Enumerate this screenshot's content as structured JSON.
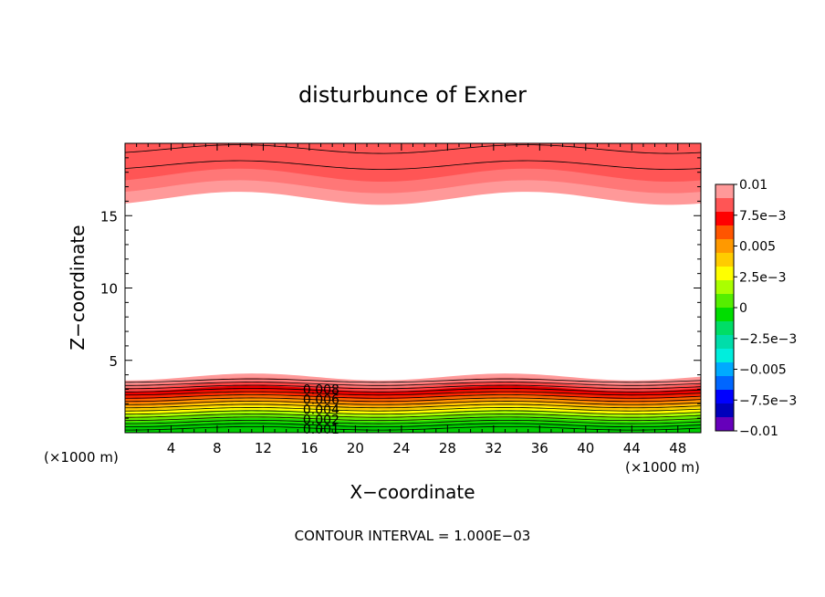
{
  "chart_data": {
    "type": "heatmap",
    "title": "disturbunce of Exner",
    "xlabel": "X−coordinate",
    "ylabel": "Z−coordinate",
    "x_unit": "(×1000 m)",
    "y_unit": "(×1000 m)",
    "xlim": [
      0,
      50
    ],
    "ylim": [
      0,
      20
    ],
    "x_ticks": [
      4,
      8,
      12,
      16,
      20,
      24,
      28,
      32,
      36,
      40,
      44,
      48
    ],
    "x_tick_labels": [
      "4",
      "8",
      "12",
      "16",
      "20",
      "24",
      "28",
      "32",
      "36",
      "40",
      "44",
      "48"
    ],
    "y_ticks": [
      5,
      10,
      15
    ],
    "y_tick_labels": [
      "5",
      "10",
      "15"
    ],
    "footer": "CONTOUR INTERVAL = 1.000E−03",
    "contour_labels": [
      {
        "text": "0.008",
        "x": 17.5,
        "y": 3.0
      },
      {
        "text": "0.006",
        "x": 17.5,
        "y": 2.3
      },
      {
        "text": "0.004",
        "x": 17.5,
        "y": 1.6
      },
      {
        "text": "0.002",
        "x": 17.5,
        "y": 0.9
      },
      {
        "text": "0.001",
        "x": 17.5,
        "y": 0.25
      }
    ],
    "colorbar": {
      "min": -0.01,
      "max": 0.01,
      "ticks": [
        "0.01",
        "7.5e−3",
        "0.005",
        "2.5e−3",
        "0",
        "−2.5e−3",
        "−0.005",
        "−7.5e−3",
        "−0.01"
      ],
      "colors": [
        "#ff9999",
        "#ff5555",
        "#ff0000",
        "#ff5500",
        "#ff9900",
        "#ffcc00",
        "#ffff00",
        "#aaff00",
        "#55ee00",
        "#00dd00",
        "#00dd66",
        "#00ddaa",
        "#00eedd",
        "#00aaff",
        "#0066ff",
        "#0000ff",
        "#0000bb",
        "#6600bb"
      ]
    },
    "bands": [
      {
        "colors": [
          "#00cc00",
          "#22dd00",
          "#66ee00",
          "#aaff00",
          "#ffff00",
          "#ffcc00",
          "#ff9900",
          "#ff6600",
          "#ff2200",
          "#ee0000",
          "#ff4444",
          "#ff7777",
          "#ff9999"
        ],
        "region": "bottom",
        "z_top": [
          3.8,
          4.2,
          3.6,
          3.9
        ]
      },
      {
        "colors": [
          "#ff9999",
          "#ff7777",
          "#ff5555"
        ],
        "region": "top",
        "z_bottom": [
          16.0,
          16.7,
          16.2,
          17.1,
          16.0
        ]
      }
    ],
    "grid": false,
    "legend_position": "right"
  }
}
